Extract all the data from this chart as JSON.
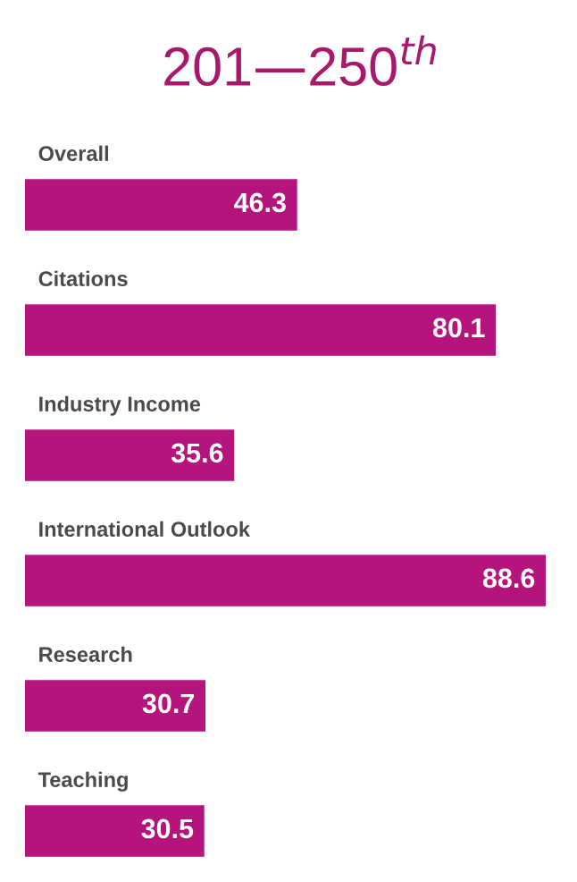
{
  "chart_data": {
    "type": "bar",
    "orientation": "horizontal",
    "title": "201—250$^{th}$",
    "categories": [
      "Overall",
      "Citations",
      "Industry Income",
      "International Outlook",
      "Research",
      "Teaching"
    ],
    "values": [
      46.3,
      80.1,
      35.6,
      88.6,
      30.7,
      30.5
    ],
    "color": "#b5147c",
    "data_labels": true
  }
}
